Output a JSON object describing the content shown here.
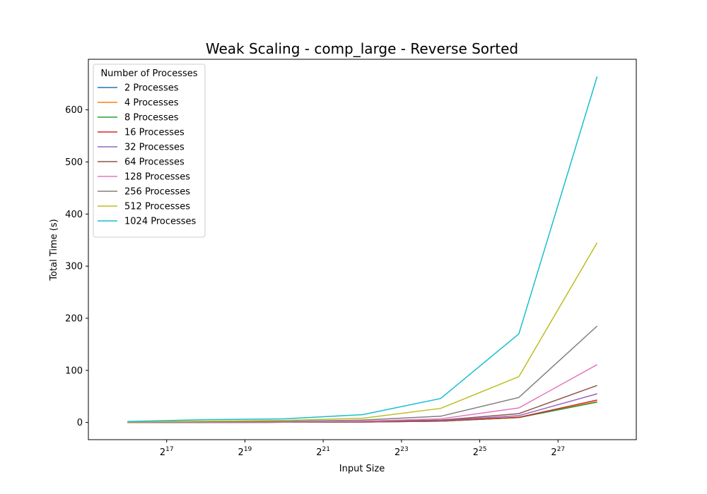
{
  "chart_data": {
    "type": "line",
    "title": "Weak Scaling - comp_large - Reverse Sorted",
    "xlabel": "Input Size",
    "ylabel": "Total Time (s)",
    "x_scale": "log2",
    "x": [
      65536,
      262144,
      1048576,
      4194304,
      16777216,
      67108864,
      268435456
    ],
    "xlim": [
      32768,
      536870912
    ],
    "ylim": [
      -33,
      697
    ],
    "x_ticks": [
      {
        "value": 131072,
        "base": "2",
        "exp": "17"
      },
      {
        "value": 524288,
        "base": "2",
        "exp": "19"
      },
      {
        "value": 2097152,
        "base": "2",
        "exp": "21"
      },
      {
        "value": 8388608,
        "base": "2",
        "exp": "23"
      },
      {
        "value": 33554432,
        "base": "2",
        "exp": "25"
      },
      {
        "value": 134217728,
        "base": "2",
        "exp": "27"
      }
    ],
    "y_ticks": [
      0,
      100,
      200,
      300,
      400,
      500,
      600
    ],
    "grid": false,
    "legend": {
      "title": "Number of Processes",
      "position": "top-left"
    },
    "series": [
      {
        "name": "2 Processes",
        "color": "#1f77b4",
        "values": [
          0.1,
          0.2,
          0.4,
          0.8,
          2.5,
          9.5,
          39
        ]
      },
      {
        "name": "4 Processes",
        "color": "#ff7f0e",
        "values": [
          0.1,
          0.2,
          0.4,
          0.8,
          2.5,
          9.5,
          40
        ]
      },
      {
        "name": "8 Processes",
        "color": "#2ca02c",
        "values": [
          0.1,
          0.2,
          0.4,
          0.8,
          2.5,
          9.5,
          39
        ]
      },
      {
        "name": "16 Processes",
        "color": "#d62728",
        "values": [
          0.1,
          0.2,
          0.5,
          0.9,
          2.8,
          10,
          43
        ]
      },
      {
        "name": "32 Processes",
        "color": "#9467bd",
        "values": [
          0.2,
          0.3,
          0.6,
          1.2,
          3.5,
          13,
          55
        ]
      },
      {
        "name": "64 Processes",
        "color": "#8c564b",
        "values": [
          0.2,
          0.4,
          0.8,
          1.6,
          4.5,
          17,
          71
        ]
      },
      {
        "name": "128 Processes",
        "color": "#e377c2",
        "values": [
          0.3,
          0.6,
          1.2,
          2.5,
          7,
          28,
          111
        ]
      },
      {
        "name": "256 Processes",
        "color": "#7f7f7f",
        "values": [
          0.5,
          1.2,
          2.2,
          4.5,
          12,
          48,
          185
        ]
      },
      {
        "name": "512 Processes",
        "color": "#bcbd22",
        "values": [
          1,
          2.5,
          4,
          8,
          27,
          88,
          345
        ]
      },
      {
        "name": "1024 Processes",
        "color": "#17becf",
        "values": [
          2,
          5.5,
          7,
          15,
          46,
          170,
          664
        ]
      }
    ]
  }
}
